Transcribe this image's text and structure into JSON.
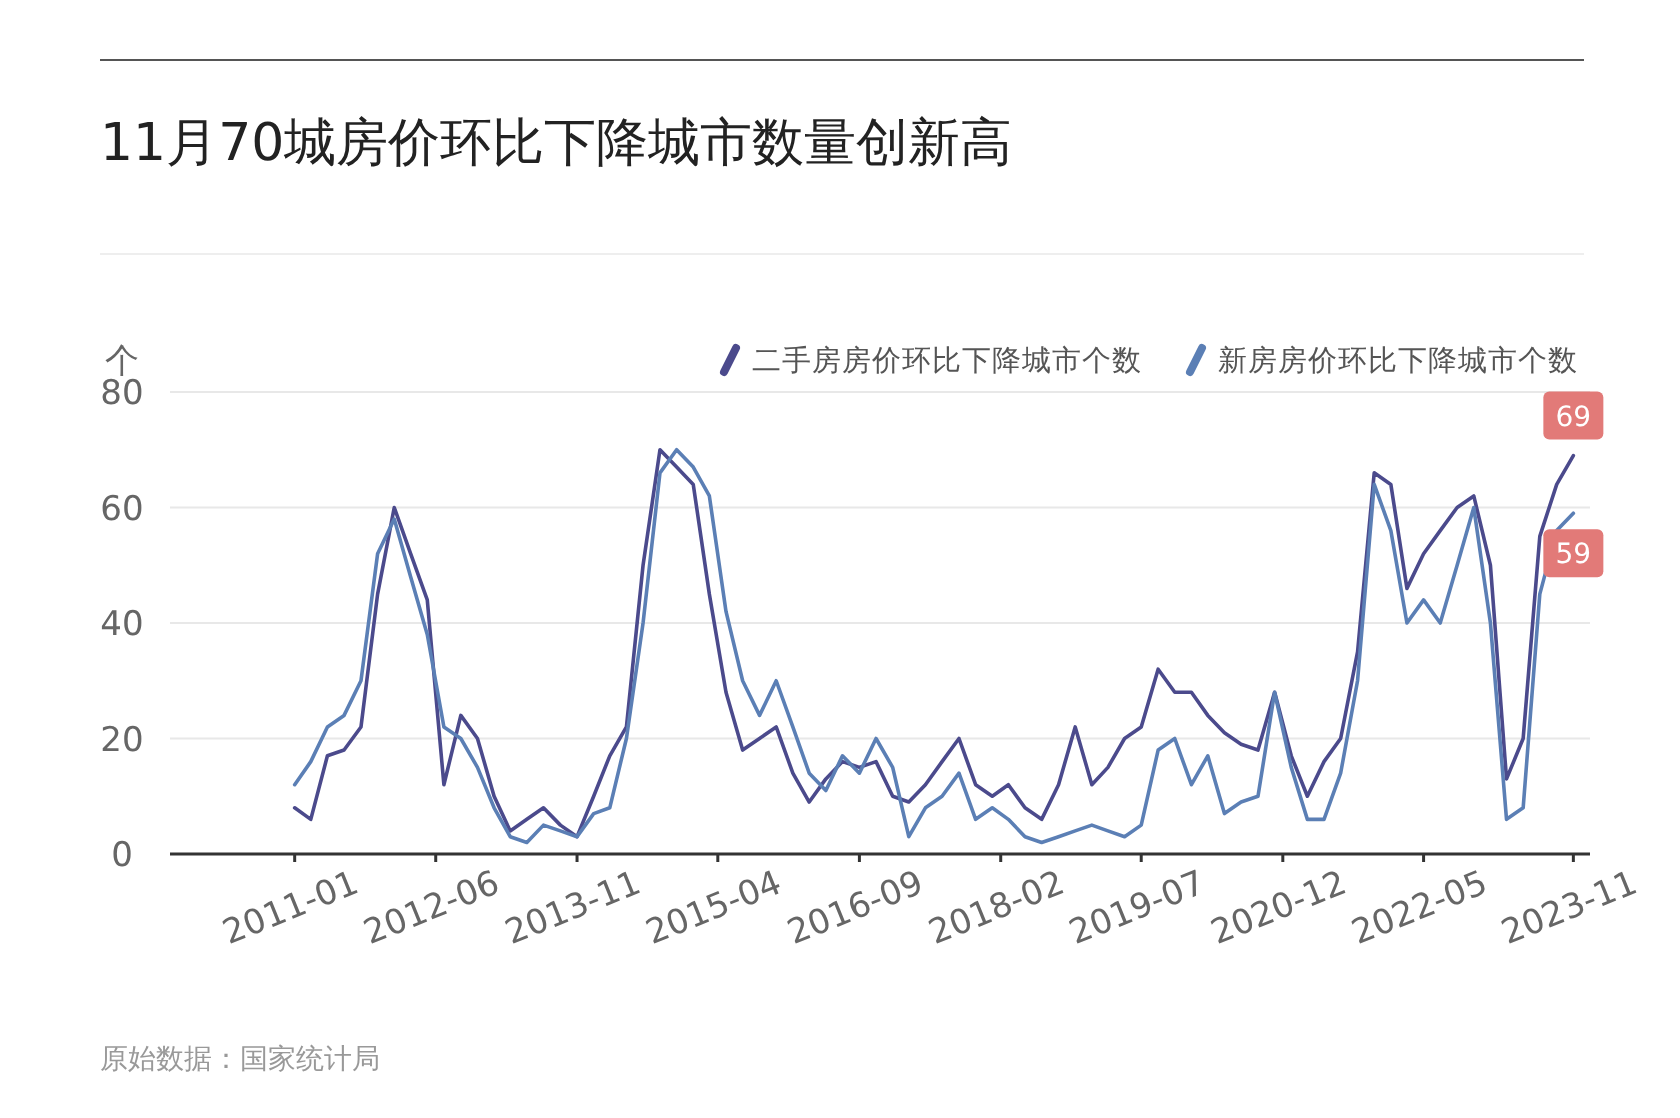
{
  "chart_data": {
    "type": "line",
    "title": "11月70城房价环比下降城市数量创新高",
    "ylabel": "个",
    "annotations": [
      "原始数据：国家统计局"
    ],
    "x": [
      "2011-01",
      "2011-03",
      "2011-05",
      "2011-07",
      "2011-09",
      "2011-11",
      "2012-01",
      "2012-03",
      "2012-05",
      "2012-07",
      "2012-09",
      "2012-11",
      "2013-01",
      "2013-03",
      "2013-05",
      "2013-07",
      "2013-09",
      "2013-11",
      "2014-01",
      "2014-03",
      "2014-05",
      "2014-07",
      "2014-09",
      "2014-11",
      "2015-01",
      "2015-03",
      "2015-05",
      "2015-07",
      "2015-09",
      "2015-11",
      "2016-01",
      "2016-03",
      "2016-05",
      "2016-07",
      "2016-09",
      "2016-11",
      "2017-01",
      "2017-03",
      "2017-05",
      "2017-07",
      "2017-09",
      "2017-11",
      "2018-01",
      "2018-03",
      "2018-05",
      "2018-07",
      "2018-09",
      "2018-11",
      "2019-01",
      "2019-03",
      "2019-05",
      "2019-07",
      "2019-09",
      "2019-11",
      "2020-01",
      "2020-03",
      "2020-05",
      "2020-07",
      "2020-09",
      "2020-11",
      "2021-01",
      "2021-03",
      "2021-05",
      "2021-07",
      "2021-09",
      "2021-11",
      "2022-01",
      "2022-03",
      "2022-05",
      "2022-07",
      "2022-09",
      "2022-11",
      "2023-01",
      "2023-03",
      "2023-05",
      "2023-07",
      "2023-09",
      "2023-11"
    ],
    "series": [
      {
        "name": "二手房房价环比下降城市个数",
        "color": "#4b4a8c",
        "values": [
          8,
          6,
          17,
          18,
          22,
          45,
          60,
          52,
          44,
          12,
          24,
          20,
          10,
          4,
          6,
          8,
          5,
          3,
          10,
          17,
          22,
          50,
          70,
          67,
          64,
          45,
          28,
          18,
          20,
          22,
          14,
          9,
          13,
          16,
          15,
          16,
          10,
          9,
          12,
          16,
          20,
          12,
          10,
          12,
          8,
          6,
          12,
          22,
          12,
          15,
          20,
          22,
          32,
          28,
          28,
          24,
          21,
          19,
          18,
          28,
          17,
          10,
          16,
          20,
          35,
          66,
          64,
          46,
          52,
          56,
          60,
          62,
          50,
          13,
          20,
          55,
          64,
          69
        ],
        "value_labels": [
          null,
          null,
          null,
          null,
          null,
          null,
          null,
          null,
          null,
          null,
          null,
          null,
          null,
          null,
          null,
          null,
          null,
          null,
          null,
          null,
          null,
          null,
          null,
          null,
          null,
          null,
          null,
          null,
          null,
          null,
          null,
          null,
          null,
          null,
          null,
          null,
          null,
          null,
          null,
          null,
          null,
          null,
          null,
          null,
          null,
          null,
          null,
          null,
          null,
          null,
          null,
          null,
          null,
          null,
          null,
          null,
          null,
          null,
          null,
          null,
          null,
          null,
          null,
          null,
          null,
          null,
          null,
          null,
          null,
          null,
          null,
          null,
          null,
          null,
          null,
          null,
          null,
          "69"
        ]
      },
      {
        "name": "新房房价环比下降城市个数",
        "color": "#5b7fb5",
        "values": [
          12,
          16,
          22,
          24,
          30,
          52,
          58,
          48,
          38,
          22,
          20,
          15,
          8,
          3,
          2,
          5,
          4,
          3,
          7,
          8,
          20,
          40,
          66,
          70,
          67,
          62,
          42,
          30,
          24,
          30,
          22,
          14,
          11,
          17,
          14,
          20,
          15,
          3,
          8,
          10,
          14,
          6,
          8,
          6,
          3,
          2,
          3,
          4,
          5,
          4,
          3,
          5,
          18,
          20,
          12,
          17,
          7,
          9,
          10,
          28,
          15,
          6,
          6,
          14,
          30,
          64,
          56,
          40,
          44,
          40,
          50,
          60,
          40,
          6,
          8,
          45,
          56,
          59
        ],
        "value_labels": [
          null,
          null,
          null,
          null,
          null,
          null,
          null,
          null,
          null,
          null,
          null,
          null,
          null,
          null,
          null,
          null,
          null,
          null,
          null,
          null,
          null,
          null,
          null,
          null,
          null,
          null,
          null,
          null,
          null,
          null,
          null,
          null,
          null,
          null,
          null,
          null,
          null,
          null,
          null,
          null,
          null,
          null,
          null,
          null,
          null,
          null,
          null,
          null,
          null,
          null,
          null,
          null,
          null,
          null,
          null,
          null,
          null,
          null,
          null,
          null,
          null,
          null,
          null,
          null,
          null,
          null,
          null,
          null,
          null,
          null,
          null,
          null,
          null,
          null,
          null,
          null,
          null,
          "59"
        ]
      }
    ],
    "xlim": [
      "2009-10",
      "2024-01"
    ],
    "xticks": [
      "2011-01",
      "2012-06",
      "2013-11",
      "2015-04",
      "2016-09",
      "2018-02",
      "2019-07",
      "2020-12",
      "2022-05",
      "2023-11"
    ],
    "ylim": [
      0,
      80
    ],
    "yticks": [
      0,
      20,
      40,
      60,
      80
    ],
    "grid": "y",
    "legend": "top right",
    "marker": "none",
    "line_style": "solid"
  }
}
